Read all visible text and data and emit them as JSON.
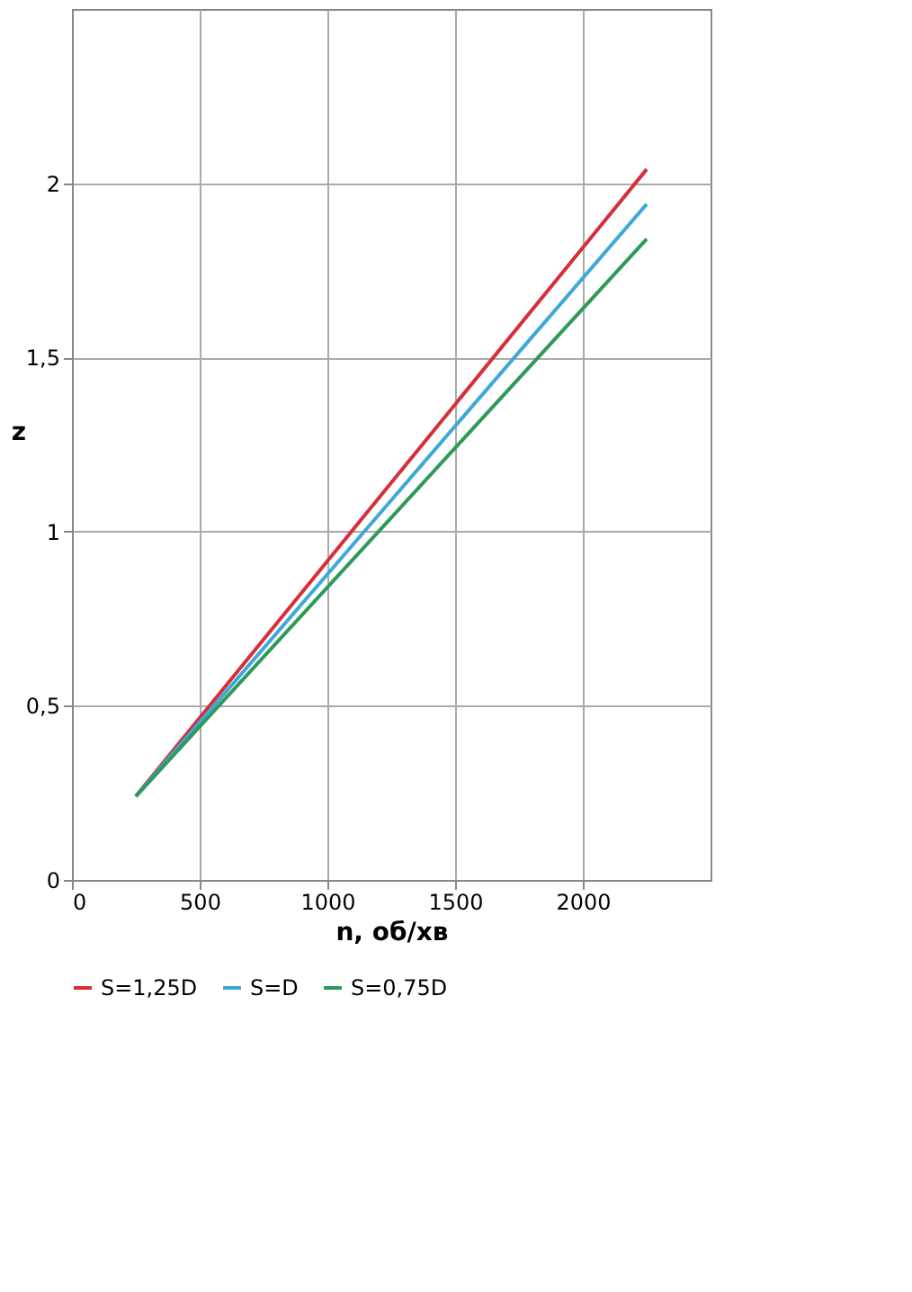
{
  "chart_data": {
    "type": "line",
    "xlabel": "n, об/хв",
    "ylabel": "z",
    "x": [
      250,
      1250,
      2250
    ],
    "series": [
      {
        "name": "S=1,25D",
        "color": "#d62f3a",
        "values": [
          0.24,
          1.14,
          2.04
        ]
      },
      {
        "name": "S=D",
        "color": "#3ea8d8",
        "values": [
          0.24,
          1.09,
          1.94
        ]
      },
      {
        "name": "S=0,75D",
        "color": "#2e9a5a",
        "values": [
          0.24,
          1.04,
          1.84
        ]
      }
    ],
    "xlim": [
      0,
      2500
    ],
    "xticks": [
      0,
      500,
      1000,
      1500,
      2000
    ],
    "ylim": [
      0,
      2.5
    ],
    "yticks": [
      0,
      {
        "value": 0.5,
        "label": "0,5"
      },
      1,
      {
        "value": 1.5,
        "label": "1,5"
      },
      2
    ],
    "grid": true,
    "legend": "bottom",
    "marker": "none",
    "line_style": "solid"
  }
}
